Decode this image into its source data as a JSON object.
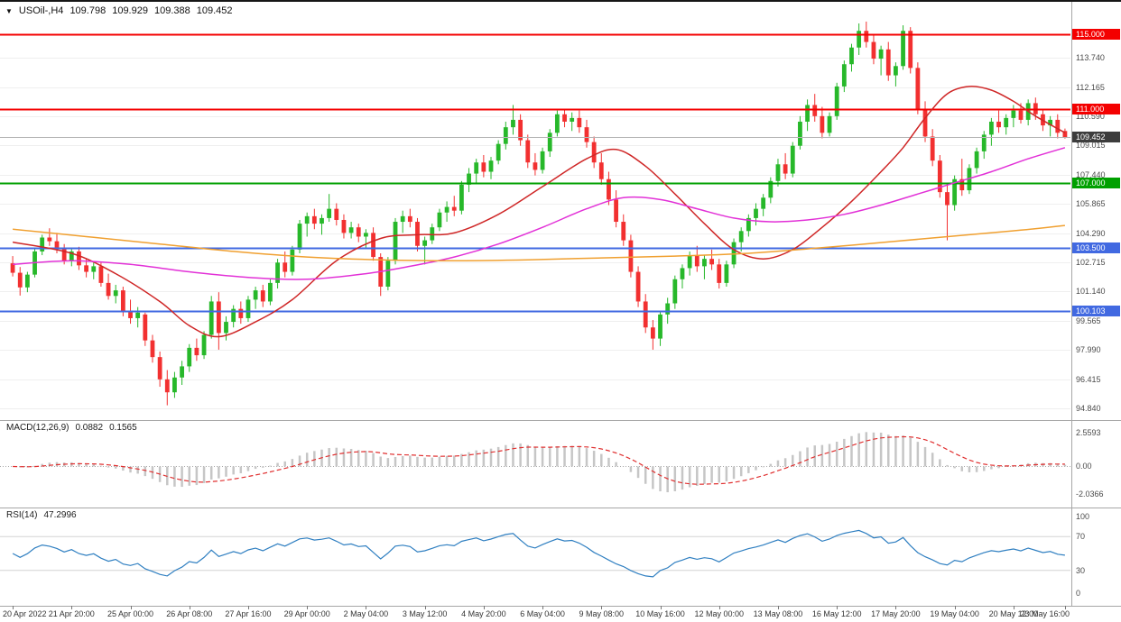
{
  "header": {
    "collapse_icon": "▼",
    "symbol_period": "USOil-,H4",
    "open": "109.798",
    "high": "109.929",
    "low": "109.388",
    "close": "109.452"
  },
  "price_axis": {
    "labels": [
      "113.740",
      "112.165",
      "110.590",
      "109.015",
      "107.440",
      "105.865",
      "104.290",
      "102.715",
      "101.140",
      "99.565",
      "97.990",
      "96.415",
      "94.840"
    ],
    "current_price_label": "109.452"
  },
  "macd": {
    "name": "MACD(12,26,9)",
    "value_main": "0.0882",
    "value_signal": "0.1565",
    "axis_labels": [
      "2.5593",
      "0.00",
      "-2.0366"
    ]
  },
  "rsi": {
    "name": "RSI(14)",
    "value": "47.2996",
    "axis_labels": [
      "100",
      "70",
      "30",
      "0"
    ]
  },
  "time_axis": {
    "labels": [
      "20 Apr 2022",
      "21 Apr 20:00",
      "25 Apr 00:00",
      "26 Apr 08:00",
      "27 Apr 16:00",
      "29 Apr 00:00",
      "2 May 04:00",
      "3 May 12:00",
      "4 May 20:00",
      "6 May 04:00",
      "9 May 08:00",
      "10 May 16:00",
      "12 May 00:00",
      "13 May 08:00",
      "16 May 12:00",
      "17 May 20:00",
      "19 May 04:00",
      "20 May 12:00",
      "23 May 16:00"
    ],
    "bar_index": [
      0,
      8,
      16,
      24,
      32,
      40,
      48,
      56,
      64,
      72,
      80,
      88,
      96,
      104,
      112,
      120,
      128,
      136,
      143
    ]
  },
  "colors": {
    "up_candle": "#27b82a",
    "down_candle": "#f23030",
    "macd_histogram": "#c6c6c6",
    "macd_signal": "#e03030",
    "rsi_line": "#2f7fc1",
    "price_marker_bg": "#3d3d3d",
    "price_line": "#b5b5b5",
    "grid": "#efefef",
    "level_line": "#d4d4d4",
    "panel_border": "#a6a6a6",
    "axis_text": "#444444"
  },
  "chart_data": {
    "type": "candlestick",
    "symbol": "USOil-",
    "timeframe": "H4",
    "y_range": [
      94.3,
      115.6
    ],
    "current_price": 109.452,
    "hlines": [
      {
        "price": 115.0,
        "label": "115.000",
        "color": "#f40000"
      },
      {
        "price": 111.0,
        "label": "111.000",
        "color": "#f40000"
      },
      {
        "price": 107.0,
        "label": "107.000",
        "color": "#00a000"
      },
      {
        "price": 103.5,
        "label": "103.500",
        "color": "#4169e1"
      },
      {
        "price": 100.103,
        "label": "100.103",
        "color": "#4169e1"
      }
    ],
    "candles": [
      [
        102.66,
        103.05,
        101.95,
        102.15
      ],
      [
        102.15,
        102.46,
        100.92,
        101.36
      ],
      [
        101.36,
        102.2,
        101.1,
        102.05
      ],
      [
        102.05,
        103.45,
        101.9,
        103.3
      ],
      [
        103.3,
        104.2,
        103.1,
        104.05
      ],
      [
        104.05,
        104.55,
        103.6,
        103.85
      ],
      [
        103.85,
        104.3,
        103.2,
        103.45
      ],
      [
        103.45,
        103.7,
        102.6,
        102.8
      ],
      [
        102.8,
        103.5,
        102.5,
        103.3
      ],
      [
        103.3,
        103.55,
        102.3,
        102.55
      ],
      [
        102.55,
        102.9,
        101.9,
        102.2
      ],
      [
        102.2,
        102.7,
        101.8,
        102.5
      ],
      [
        102.5,
        102.7,
        101.4,
        101.6
      ],
      [
        101.6,
        102.1,
        100.7,
        100.9
      ],
      [
        100.9,
        101.5,
        100.5,
        101.2
      ],
      [
        101.2,
        101.4,
        99.8,
        100.1
      ],
      [
        100.1,
        100.7,
        99.4,
        99.7
      ],
      [
        99.7,
        100.3,
        99.2,
        100.0
      ],
      [
        99.9,
        100.0,
        98.2,
        98.5
      ],
      [
        98.5,
        98.8,
        97.3,
        97.6
      ],
      [
        97.6,
        97.9,
        96.0,
        96.4
      ],
      [
        96.4,
        96.9,
        95.0,
        95.7
      ],
      [
        95.7,
        96.8,
        95.4,
        96.5
      ],
      [
        96.5,
        97.4,
        96.1,
        97.1
      ],
      [
        97.1,
        98.3,
        96.8,
        98.1
      ],
      [
        98.1,
        98.6,
        97.4,
        97.7
      ],
      [
        97.7,
        99.0,
        97.5,
        98.8
      ],
      [
        98.8,
        100.9,
        98.6,
        100.6
      ],
      [
        100.6,
        101.1,
        98.0,
        98.9
      ],
      [
        98.9,
        99.8,
        98.5,
        99.5
      ],
      [
        99.5,
        100.4,
        99.2,
        100.2
      ],
      [
        100.2,
        100.6,
        99.4,
        99.7
      ],
      [
        99.7,
        100.9,
        99.5,
        100.7
      ],
      [
        100.7,
        101.4,
        100.2,
        101.2
      ],
      [
        101.2,
        101.5,
        100.3,
        100.6
      ],
      [
        100.6,
        101.8,
        100.4,
        101.6
      ],
      [
        101.6,
        102.9,
        101.3,
        102.7
      ],
      [
        102.7,
        103.3,
        101.9,
        102.2
      ],
      [
        102.2,
        103.6,
        102.0,
        103.4
      ],
      [
        103.4,
        105.0,
        103.2,
        104.8
      ],
      [
        104.8,
        105.4,
        104.1,
        105.2
      ],
      [
        105.2,
        105.6,
        104.5,
        104.8
      ],
      [
        104.8,
        105.3,
        104.2,
        105.1
      ],
      [
        105.1,
        106.4,
        104.9,
        105.6
      ],
      [
        105.6,
        105.9,
        104.7,
        105.0
      ],
      [
        105.0,
        105.3,
        104.0,
        104.3
      ],
      [
        104.3,
        104.9,
        104.0,
        104.6
      ],
      [
        104.6,
        104.8,
        103.8,
        104.1
      ],
      [
        104.1,
        104.5,
        103.5,
        104.3
      ],
      [
        104.3,
        104.6,
        102.8,
        103.0
      ],
      [
        103.0,
        103.2,
        100.9,
        101.4
      ],
      [
        101.4,
        103.0,
        101.2,
        102.8
      ],
      [
        102.8,
        105.1,
        102.6,
        104.9
      ],
      [
        104.9,
        105.5,
        104.3,
        105.2
      ],
      [
        105.2,
        105.6,
        104.6,
        104.9
      ],
      [
        104.9,
        105.1,
        103.3,
        103.6
      ],
      [
        103.6,
        104.1,
        102.6,
        103.9
      ],
      [
        103.9,
        104.8,
        103.7,
        104.6
      ],
      [
        104.6,
        105.6,
        104.4,
        105.4
      ],
      [
        105.4,
        106.0,
        104.9,
        105.7
      ],
      [
        105.7,
        106.3,
        105.2,
        105.5
      ],
      [
        105.5,
        107.1,
        105.3,
        106.9
      ],
      [
        106.9,
        107.8,
        106.5,
        107.5
      ],
      [
        107.5,
        108.3,
        107.0,
        108.1
      ],
      [
        108.1,
        108.5,
        107.3,
        107.6
      ],
      [
        107.6,
        108.4,
        107.2,
        108.2
      ],
      [
        108.2,
        109.3,
        108.0,
        109.1
      ],
      [
        109.1,
        110.3,
        108.8,
        110.0
      ],
      [
        110.0,
        111.2,
        109.6,
        110.4
      ],
      [
        110.4,
        110.7,
        109.0,
        109.3
      ],
      [
        109.3,
        109.6,
        107.8,
        108.1
      ],
      [
        108.1,
        108.6,
        107.4,
        107.7
      ],
      [
        107.7,
        108.9,
        107.5,
        108.7
      ],
      [
        108.7,
        109.9,
        108.4,
        109.7
      ],
      [
        109.7,
        110.9,
        109.5,
        110.7
      ],
      [
        110.7,
        111.0,
        110.0,
        110.3
      ],
      [
        110.3,
        110.8,
        109.8,
        110.5
      ],
      [
        110.5,
        110.9,
        109.7,
        110.0
      ],
      [
        110.0,
        110.4,
        108.9,
        109.2
      ],
      [
        109.2,
        109.5,
        107.8,
        108.1
      ],
      [
        108.1,
        108.6,
        106.9,
        107.2
      ],
      [
        107.2,
        107.6,
        105.8,
        106.1
      ],
      [
        106.1,
        106.6,
        104.6,
        104.9
      ],
      [
        104.9,
        105.3,
        103.6,
        103.9
      ],
      [
        103.9,
        104.2,
        101.9,
        102.2
      ],
      [
        102.2,
        102.5,
        100.3,
        100.6
      ],
      [
        100.6,
        101.0,
        98.9,
        99.2
      ],
      [
        99.2,
        99.6,
        98.0,
        98.6
      ],
      [
        98.6,
        100.1,
        98.2,
        99.9
      ],
      [
        99.9,
        100.8,
        99.4,
        100.5
      ],
      [
        100.5,
        102.0,
        100.2,
        101.8
      ],
      [
        101.8,
        102.6,
        101.3,
        102.4
      ],
      [
        102.4,
        103.3,
        102.0,
        103.1
      ],
      [
        103.1,
        103.6,
        102.2,
        102.5
      ],
      [
        102.5,
        103.1,
        101.8,
        102.9
      ],
      [
        102.9,
        103.4,
        102.3,
        102.6
      ],
      [
        102.6,
        102.9,
        101.3,
        101.6
      ],
      [
        101.6,
        102.8,
        101.4,
        102.6
      ],
      [
        102.6,
        104.0,
        102.4,
        103.8
      ],
      [
        103.8,
        104.6,
        103.3,
        104.4
      ],
      [
        104.4,
        105.3,
        104.1,
        105.1
      ],
      [
        105.1,
        105.9,
        104.7,
        105.6
      ],
      [
        105.6,
        106.4,
        105.2,
        106.2
      ],
      [
        106.2,
        107.3,
        105.9,
        107.1
      ],
      [
        107.1,
        108.3,
        106.8,
        108.0
      ],
      [
        108.0,
        108.6,
        107.2,
        107.5
      ],
      [
        107.5,
        109.2,
        107.3,
        109.0
      ],
      [
        109.0,
        110.6,
        108.8,
        110.3
      ],
      [
        110.3,
        111.5,
        109.8,
        111.2
      ],
      [
        111.2,
        111.8,
        110.3,
        110.6
      ],
      [
        110.6,
        111.1,
        109.4,
        109.7
      ],
      [
        109.7,
        110.8,
        109.5,
        110.6
      ],
      [
        110.6,
        112.4,
        110.4,
        112.2
      ],
      [
        112.2,
        113.6,
        111.9,
        113.4
      ],
      [
        113.4,
        114.5,
        113.0,
        114.3
      ],
      [
        114.3,
        115.6,
        113.9,
        115.2
      ],
      [
        115.2,
        115.7,
        114.3,
        114.6
      ],
      [
        114.6,
        115.0,
        113.4,
        113.7
      ],
      [
        113.7,
        114.4,
        112.8,
        114.2
      ],
      [
        114.2,
        114.6,
        112.5,
        112.8
      ],
      [
        112.8,
        113.5,
        112.2,
        113.3
      ],
      [
        113.3,
        115.5,
        113.1,
        115.2
      ],
      [
        115.2,
        115.4,
        112.9,
        113.2
      ],
      [
        113.2,
        113.5,
        110.7,
        111.0
      ],
      [
        111.0,
        111.4,
        109.2,
        109.5
      ],
      [
        109.5,
        109.9,
        107.9,
        108.2
      ],
      [
        108.2,
        108.5,
        106.2,
        106.5
      ],
      [
        106.5,
        107.0,
        103.9,
        105.8
      ],
      [
        105.8,
        107.4,
        105.5,
        107.2
      ],
      [
        107.2,
        108.3,
        106.3,
        106.6
      ],
      [
        106.6,
        108.0,
        106.4,
        107.8
      ],
      [
        107.8,
        108.9,
        107.5,
        108.7
      ],
      [
        108.7,
        109.8,
        108.3,
        109.6
      ],
      [
        109.6,
        110.5,
        109.0,
        110.3
      ],
      [
        110.3,
        110.9,
        109.7,
        110.0
      ],
      [
        110.0,
        110.7,
        109.6,
        110.5
      ],
      [
        110.5,
        111.2,
        110.0,
        110.9
      ],
      [
        110.9,
        111.3,
        110.2,
        110.4
      ],
      [
        110.4,
        111.5,
        110.1,
        111.3
      ],
      [
        111.3,
        111.6,
        110.4,
        110.7
      ],
      [
        110.7,
        111.0,
        109.8,
        110.1
      ],
      [
        110.1,
        110.6,
        109.5,
        110.4
      ],
      [
        110.4,
        110.7,
        109.4,
        109.7
      ],
      [
        109.798,
        109.929,
        109.388,
        109.452
      ]
    ],
    "moving_averages": [
      {
        "name": "ma-fast-red",
        "color": "#cf2626",
        "points": [
          [
            0,
            103.8
          ],
          [
            8,
            103.2
          ],
          [
            14,
            102.1
          ],
          [
            20,
            100.6
          ],
          [
            24,
            99.3
          ],
          [
            28,
            98.7
          ],
          [
            33,
            99.5
          ],
          [
            38,
            100.7
          ],
          [
            44,
            102.8
          ],
          [
            50,
            104.0
          ],
          [
            55,
            104.2
          ],
          [
            60,
            104.3
          ],
          [
            66,
            105.3
          ],
          [
            72,
            106.8
          ],
          [
            78,
            108.3
          ],
          [
            82,
            108.8
          ],
          [
            86,
            107.9
          ],
          [
            90,
            106.4
          ],
          [
            94,
            104.8
          ],
          [
            98,
            103.4
          ],
          [
            102,
            102.9
          ],
          [
            106,
            103.4
          ],
          [
            110,
            104.6
          ],
          [
            114,
            106.0
          ],
          [
            118,
            107.6
          ],
          [
            121,
            108.9
          ],
          [
            124,
            110.5
          ],
          [
            127,
            111.8
          ],
          [
            130,
            112.2
          ],
          [
            133,
            112.0
          ],
          [
            136,
            111.4
          ],
          [
            139,
            110.6
          ],
          [
            143,
            109.7
          ]
        ]
      },
      {
        "name": "ma-mid-magenta",
        "color": "#e231d7",
        "points": [
          [
            0,
            102.6
          ],
          [
            8,
            102.8
          ],
          [
            16,
            102.6
          ],
          [
            24,
            102.2
          ],
          [
            32,
            101.9
          ],
          [
            40,
            101.8
          ],
          [
            48,
            102.1
          ],
          [
            54,
            102.5
          ],
          [
            60,
            103.0
          ],
          [
            66,
            103.7
          ],
          [
            72,
            104.6
          ],
          [
            78,
            105.6
          ],
          [
            83,
            106.2
          ],
          [
            88,
            106.1
          ],
          [
            93,
            105.6
          ],
          [
            98,
            105.1
          ],
          [
            103,
            104.9
          ],
          [
            108,
            105.0
          ],
          [
            113,
            105.3
          ],
          [
            118,
            105.8
          ],
          [
            123,
            106.4
          ],
          [
            128,
            107.0
          ],
          [
            133,
            107.6
          ],
          [
            138,
            108.3
          ],
          [
            143,
            108.9
          ]
        ]
      },
      {
        "name": "ma-slow-orange",
        "color": "#f0a030",
        "points": [
          [
            0,
            104.5
          ],
          [
            10,
            104.1
          ],
          [
            20,
            103.7
          ],
          [
            30,
            103.3
          ],
          [
            40,
            103.0
          ],
          [
            50,
            102.85
          ],
          [
            60,
            102.8
          ],
          [
            70,
            102.85
          ],
          [
            80,
            102.95
          ],
          [
            90,
            103.05
          ],
          [
            100,
            103.2
          ],
          [
            110,
            103.5
          ],
          [
            120,
            103.85
          ],
          [
            130,
            104.2
          ],
          [
            137,
            104.45
          ],
          [
            143,
            104.7
          ]
        ]
      }
    ],
    "macd": {
      "fast": 12,
      "slow": 26,
      "signal": 9,
      "range": [
        -2.8,
        3.2
      ]
    },
    "rsi": {
      "period": 14,
      "range": [
        0,
        100
      ],
      "levels": [
        70,
        30
      ]
    }
  }
}
